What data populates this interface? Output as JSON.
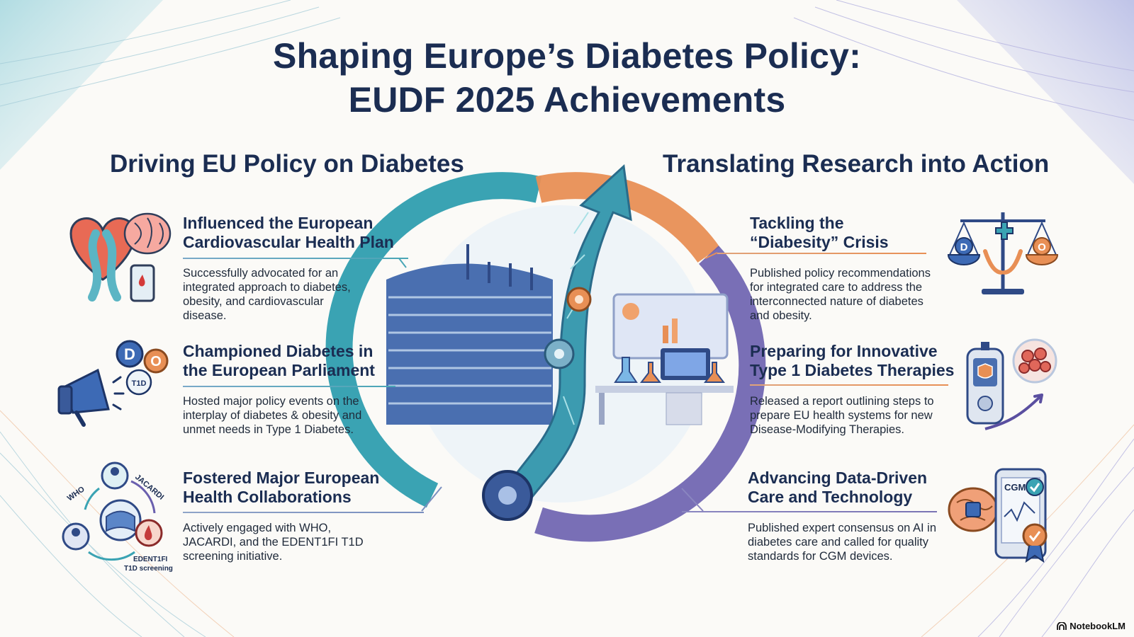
{
  "title": {
    "line1": "Shaping Europe’s Diabetes Policy:",
    "line2": "EUDF 2025 Achievements"
  },
  "left_column": {
    "heading": "Driving EU Policy on Diabetes",
    "items": [
      {
        "heading": "Influenced the European Cardiovascular Health Plan",
        "text": "Successfully advocated for an integrated approach to diabetes, obesity, and cardiovascular disease.",
        "icon": "heart-brain-ribbon-icon"
      },
      {
        "heading": "Championed Diabetes in the European Parliament",
        "text": "Hosted major policy events on the interplay of diabetes & obesity and unmet needs in Type 1 Diabetes.",
        "icon": "megaphone-icon"
      },
      {
        "heading": "Fostered Major European Health Collaborations",
        "text": "Actively engaged with WHO, JACARDI, and the EDENT1FI T1D screening initiative.",
        "icon": "collaboration-network-icon"
      }
    ]
  },
  "right_column": {
    "heading": "Translating Research into Action",
    "items": [
      {
        "heading": "Tackling the “Diabesity” Crisis",
        "text": "Published policy recommendations for integrated care to address the interconnected nature of diabetes and obesity.",
        "icon": "balance-scale-icon"
      },
      {
        "heading": "Preparing for Innovative Type 1 Diabetes Therapies",
        "text": "Released a report outlining steps to prepare EU health systems for new Disease-Modifying Therapies.",
        "icon": "glucose-meter-icon"
      },
      {
        "heading": "Advancing Data-Driven Care and Technology",
        "text": "Published expert consensus on AI in diabetes care and called for quality standards for CGM devices.",
        "icon": "ai-cgm-icon"
      }
    ]
  },
  "icon_labels": {
    "d": "D",
    "o": "O",
    "t1d": "T1D",
    "who": "WHO",
    "jacardi": "JACARDI",
    "edent1fi": "EDENT1FI",
    "t1d_screening": "T1D screening",
    "cgm": "CGM"
  },
  "watermark": "NotebookLM",
  "colors": {
    "title": "#1b2d52",
    "teal": "#3aa3b3",
    "orange": "#e88f55",
    "navy": "#2f4a86",
    "purple": "#6a5fae"
  }
}
